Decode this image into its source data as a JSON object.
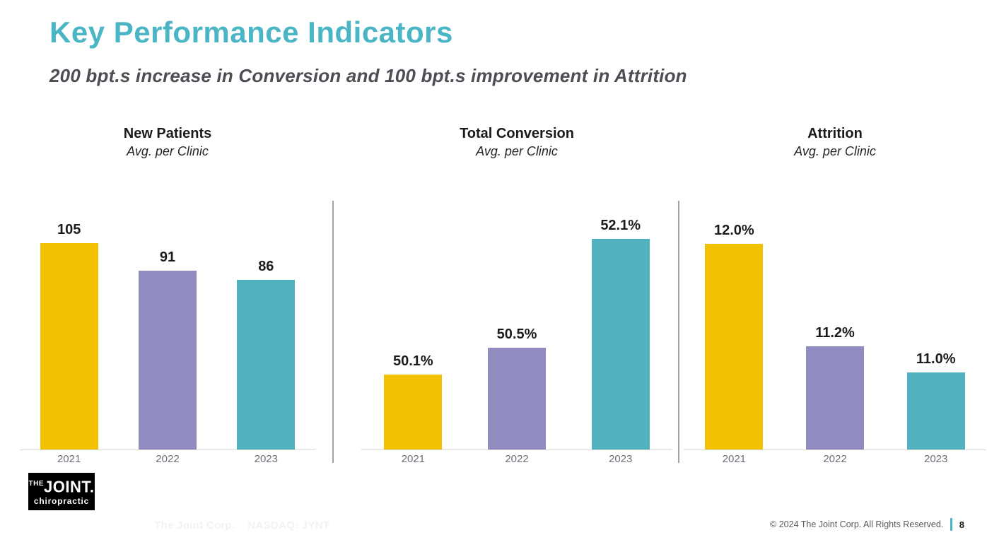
{
  "page": {
    "title": "Key Performance Indicators",
    "subtitle": "200 bpt.s increase in Conversion and 100 bpt.s improvement in Attrition",
    "accent_color": "#4AB5C4",
    "logo": {
      "the": "THE",
      "joint": "JOINT.",
      "chiropractic": "chiropractic"
    },
    "watermark": "The Joint Corp.    NASDAQ: JYNT",
    "footer": {
      "copyright": "© 2024 The Joint Corp. All Rights Reserved.",
      "page_number": "8",
      "separator_color": "#4AB5C4"
    }
  },
  "chart_data": [
    {
      "type": "bar",
      "title": "New Patients",
      "subtitle": "Avg. per Clinic",
      "categories": [
        "2021",
        "2022",
        "2023"
      ],
      "values": [
        105,
        91,
        86
      ],
      "data_labels": [
        "105",
        "91",
        "86"
      ],
      "ylim": [
        0,
        121
      ],
      "grid": false,
      "legend": "none",
      "bar_colors": [
        "#F2C200",
        "#908CC0",
        "#52B1BE"
      ]
    },
    {
      "type": "bar",
      "title": "Total Conversion",
      "subtitle": "Avg. per Clinic",
      "categories": [
        "2021",
        "2022",
        "2023"
      ],
      "values": [
        50.1,
        50.5,
        52.1
      ],
      "data_labels": [
        "50.1%",
        "50.5%",
        "52.1%"
      ],
      "ylim": [
        49.0,
        52.5
      ],
      "grid": false,
      "legend": "none",
      "bar_colors": [
        "#F2C200",
        "#908CC0",
        "#52B1BE"
      ]
    },
    {
      "type": "bar",
      "title": "Attrition",
      "subtitle": "Avg. per Clinic",
      "categories": [
        "2021",
        "2022",
        "2023"
      ],
      "values": [
        12.0,
        11.2,
        11.0
      ],
      "data_labels": [
        "12.0%",
        "11.2%",
        "11.0%"
      ],
      "ylim": [
        10.4,
        12.25
      ],
      "grid": false,
      "legend": "none",
      "bar_colors": [
        "#F2C200",
        "#908CC0",
        "#52B1BE"
      ]
    }
  ]
}
